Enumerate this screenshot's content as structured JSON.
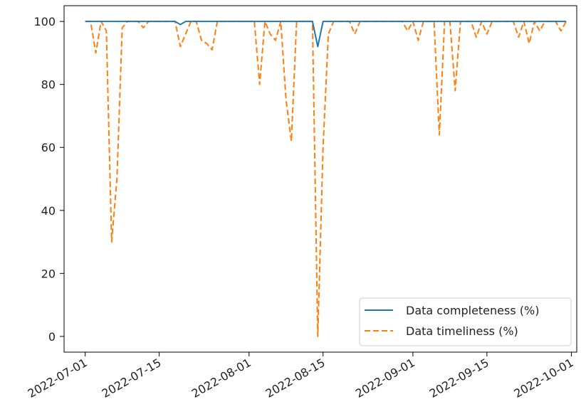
{
  "chart_data": {
    "type": "line",
    "title": "",
    "xlabel": "",
    "ylabel": "",
    "x_axis": {
      "kind": "date",
      "range": [
        "2022-06-27",
        "2022-10-02"
      ],
      "tick_labels": [
        "2022-07-01",
        "2022-07-15",
        "2022-08-01",
        "2022-08-15",
        "2022-09-01",
        "2022-09-15",
        "2022-10-01"
      ]
    },
    "y_axis": {
      "range": [
        -5,
        105
      ],
      "tick_values": [
        0,
        20,
        40,
        60,
        80,
        100
      ],
      "tick_labels": [
        "0",
        "20",
        "40",
        "60",
        "80",
        "100"
      ]
    },
    "grid": false,
    "legend_position": "lower-right",
    "series": [
      {
        "name": "Data completeness (%)",
        "color": "#1f77b4",
        "style": "solid",
        "points": [
          [
            "2022-07-01",
            100
          ],
          [
            "2022-07-18",
            100
          ],
          [
            "2022-07-19",
            99
          ],
          [
            "2022-07-20",
            100
          ],
          [
            "2022-08-13",
            100
          ],
          [
            "2022-08-14",
            92
          ],
          [
            "2022-08-15",
            100
          ],
          [
            "2022-09-30",
            100
          ]
        ]
      },
      {
        "name": "Data timeliness (%)",
        "color": "#ff7f0e",
        "style": "dashed",
        "points": [
          [
            "2022-07-01",
            100
          ],
          [
            "2022-07-02",
            100
          ],
          [
            "2022-07-03",
            90
          ],
          [
            "2022-07-04",
            100
          ],
          [
            "2022-07-05",
            97
          ],
          [
            "2022-07-06",
            30
          ],
          [
            "2022-07-07",
            50
          ],
          [
            "2022-07-08",
            98
          ],
          [
            "2022-07-09",
            100
          ],
          [
            "2022-07-11",
            100
          ],
          [
            "2022-07-12",
            98
          ],
          [
            "2022-07-13",
            100
          ],
          [
            "2022-07-18",
            100
          ],
          [
            "2022-07-19",
            92
          ],
          [
            "2022-07-20",
            96
          ],
          [
            "2022-07-21",
            100
          ],
          [
            "2022-07-22",
            100
          ],
          [
            "2022-07-23",
            94
          ],
          [
            "2022-07-24",
            93
          ],
          [
            "2022-07-25",
            91
          ],
          [
            "2022-07-26",
            100
          ],
          [
            "2022-08-01",
            100
          ],
          [
            "2022-08-02",
            100
          ],
          [
            "2022-08-03",
            80
          ],
          [
            "2022-08-04",
            100
          ],
          [
            "2022-08-05",
            96
          ],
          [
            "2022-08-06",
            94
          ],
          [
            "2022-08-07",
            100
          ],
          [
            "2022-08-08",
            75
          ],
          [
            "2022-08-09",
            62
          ],
          [
            "2022-08-10",
            100
          ],
          [
            "2022-08-11",
            100
          ],
          [
            "2022-08-12",
            100
          ],
          [
            "2022-08-13",
            100
          ],
          [
            "2022-08-14",
            0
          ],
          [
            "2022-08-15",
            60
          ],
          [
            "2022-08-16",
            96
          ],
          [
            "2022-08-17",
            100
          ],
          [
            "2022-08-20",
            100
          ],
          [
            "2022-08-21",
            96
          ],
          [
            "2022-08-22",
            100
          ],
          [
            "2022-08-30",
            100
          ],
          [
            "2022-08-31",
            97
          ],
          [
            "2022-09-01",
            100
          ],
          [
            "2022-09-02",
            94
          ],
          [
            "2022-09-03",
            100
          ],
          [
            "2022-09-05",
            100
          ],
          [
            "2022-09-06",
            64
          ],
          [
            "2022-09-07",
            100
          ],
          [
            "2022-09-08",
            100
          ],
          [
            "2022-09-09",
            78
          ],
          [
            "2022-09-10",
            100
          ],
          [
            "2022-09-12",
            100
          ],
          [
            "2022-09-13",
            95
          ],
          [
            "2022-09-14",
            100
          ],
          [
            "2022-09-15",
            96
          ],
          [
            "2022-09-16",
            100
          ],
          [
            "2022-09-20",
            100
          ],
          [
            "2022-09-21",
            95
          ],
          [
            "2022-09-22",
            100
          ],
          [
            "2022-09-23",
            93
          ],
          [
            "2022-09-24",
            100
          ],
          [
            "2022-09-25",
            97
          ],
          [
            "2022-09-26",
            100
          ],
          [
            "2022-09-28",
            100
          ],
          [
            "2022-09-29",
            97
          ],
          [
            "2022-09-30",
            100
          ]
        ]
      }
    ]
  }
}
